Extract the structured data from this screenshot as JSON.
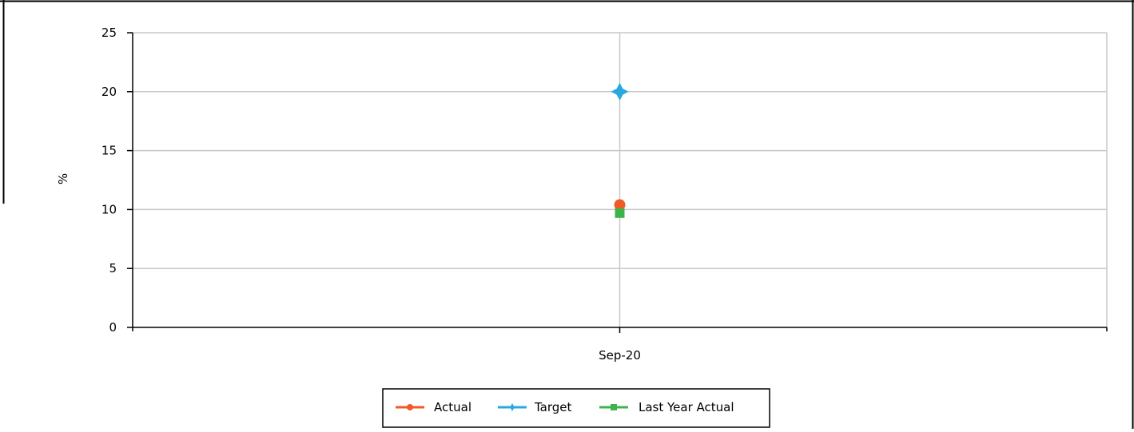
{
  "chart_data": {
    "type": "line",
    "title": "",
    "xlabel": "",
    "ylabel": "%",
    "categories": [
      "Sep-20"
    ],
    "ylim": [
      0,
      25
    ],
    "yticks": [
      0,
      5,
      10,
      15,
      20,
      25
    ],
    "grid": true,
    "legend_position": "bottom",
    "series": [
      {
        "name": "Actual",
        "values": [
          10.4
        ],
        "color": "#f05a28",
        "marker": "circle"
      },
      {
        "name": "Target",
        "values": [
          20
        ],
        "color": "#29a8e0",
        "marker": "diamond-star"
      },
      {
        "name": "Last Year Actual",
        "values": [
          9.7
        ],
        "color": "#3cb44b",
        "marker": "square"
      }
    ]
  }
}
